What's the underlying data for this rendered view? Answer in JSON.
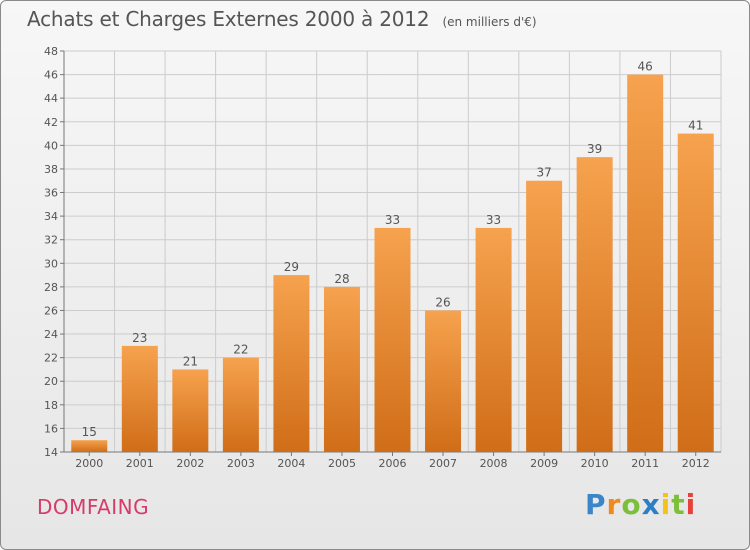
{
  "title": "Achats et Charges Externes 2000 à 2012",
  "unit": "(en milliers d'€)",
  "commune": "DOMFAING",
  "brand": {
    "letters": [
      "P",
      "r",
      "o",
      "x",
      "i",
      "t",
      "i"
    ],
    "colors": [
      "#3a86c8",
      "#f18a1c",
      "#7cbf3a",
      "#2c7fc4",
      "#f3c21b",
      "#7cbf3a",
      "#e8403a"
    ]
  },
  "colors": {
    "bar_light": "#f6a24e",
    "bar_dark": "#d06d18",
    "text": "#555555",
    "grid": "#cccccc"
  },
  "chart_data": {
    "type": "bar",
    "categories": [
      "2000",
      "2001",
      "2002",
      "2003",
      "2004",
      "2005",
      "2006",
      "2007",
      "2008",
      "2009",
      "2010",
      "2011",
      "2012"
    ],
    "values": [
      15,
      23,
      21,
      22,
      29,
      28,
      33,
      26,
      33,
      37,
      39,
      46,
      41
    ],
    "title": "Achats et Charges Externes 2000 à 2012",
    "ylim": [
      14,
      48
    ],
    "yticks": [
      14,
      16,
      18,
      20,
      22,
      24,
      26,
      28,
      30,
      32,
      34,
      36,
      38,
      40,
      42,
      44,
      46,
      48
    ],
    "grid": true
  }
}
